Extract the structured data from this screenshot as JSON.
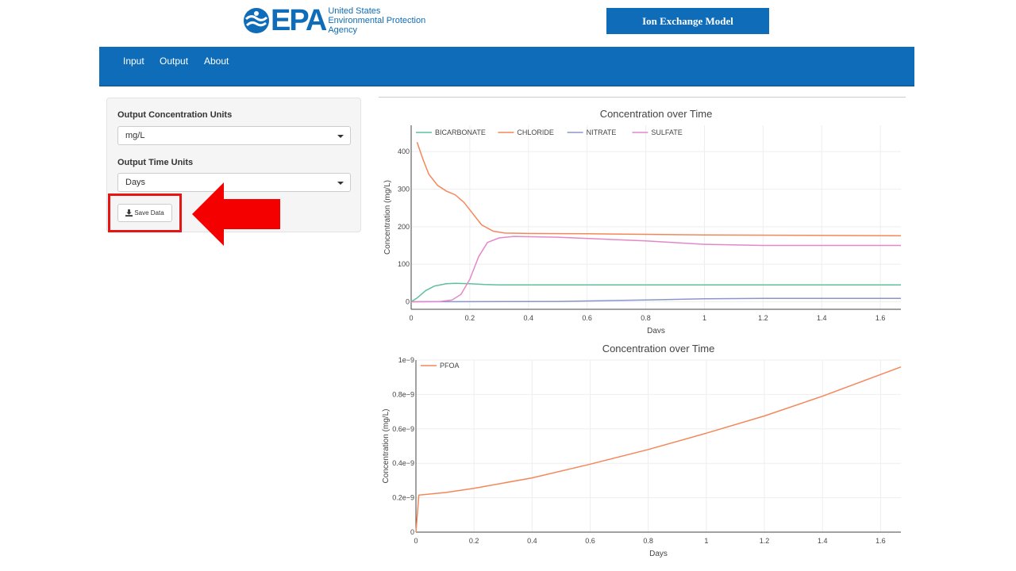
{
  "header": {
    "logo_word": "EPA",
    "logo_line1": "United States",
    "logo_line2": "Environmental Protection",
    "logo_line3": "Agency",
    "model_title": "Ion Exchange Model"
  },
  "nav": {
    "items": [
      "Input",
      "Output",
      "About"
    ]
  },
  "sidebar": {
    "conc_units_label": "Output Concentration Units",
    "conc_units_value": "mg/L",
    "time_units_label": "Output Time Units",
    "time_units_value": "Days",
    "save_label": "Save Data"
  },
  "chart_data": [
    {
      "type": "line",
      "title": "Concentration over Time",
      "xlabel": "Days",
      "ylabel": "Concentration (mg/L)",
      "xlim": [
        0,
        1.67
      ],
      "ylim": [
        -20,
        470
      ],
      "xticks": [
        0,
        0.2,
        0.4,
        0.6,
        0.8,
        1,
        1.2,
        1.4,
        1.6
      ],
      "xtick_labels": [
        "0",
        "0.2",
        "0.4",
        "0.6",
        "0.8",
        "1",
        "1.2",
        "1.4",
        "1.6"
      ],
      "yticks": [
        0,
        100,
        200,
        300,
        400
      ],
      "ytick_labels": [
        "0",
        "100",
        "200",
        "300",
        "400"
      ],
      "grid": true,
      "legend_position": "top-left",
      "series": [
        {
          "name": "BICARBONATE",
          "color": "#5ec19a",
          "x": [
            0,
            0.02,
            0.05,
            0.08,
            0.12,
            0.15,
            0.2,
            0.25,
            0.3,
            0.5,
            1.0,
            1.67
          ],
          "y": [
            0,
            10,
            30,
            42,
            48,
            49,
            48,
            46,
            45,
            45,
            45,
            45
          ]
        },
        {
          "name": "CHLORIDE",
          "color": "#f4875a",
          "x": [
            0.02,
            0.04,
            0.06,
            0.09,
            0.12,
            0.15,
            0.18,
            0.21,
            0.24,
            0.28,
            0.32,
            0.4,
            0.6,
            1.0,
            1.67
          ],
          "y": [
            425,
            380,
            340,
            310,
            295,
            285,
            265,
            235,
            205,
            188,
            183,
            182,
            181,
            178,
            176
          ]
        },
        {
          "name": "NITRATE",
          "color": "#8a96c8",
          "x": [
            0,
            0.5,
            0.8,
            1.0,
            1.2,
            1.67
          ],
          "y": [
            0,
            1,
            5,
            8,
            9,
            9
          ]
        },
        {
          "name": "SULFATE",
          "color": "#e487c9",
          "x": [
            0,
            0.1,
            0.14,
            0.17,
            0.2,
            0.23,
            0.26,
            0.3,
            0.35,
            0.5,
            0.8,
            1.0,
            1.2,
            1.67
          ],
          "y": [
            0,
            1,
            5,
            20,
            60,
            120,
            158,
            170,
            174,
            172,
            162,
            153,
            150,
            150
          ]
        }
      ]
    },
    {
      "type": "line",
      "title": "Concentration over Time",
      "xlabel": "Days",
      "ylabel": "Concentration (mg/L)",
      "xlim": [
        0,
        1.67
      ],
      "ylim": [
        0,
        1e-09
      ],
      "xticks": [
        0,
        0.2,
        0.4,
        0.6,
        0.8,
        1,
        1.2,
        1.4,
        1.6
      ],
      "xtick_labels": [
        "0",
        "0.2",
        "0.4",
        "0.6",
        "0.8",
        "1",
        "1.2",
        "1.4",
        "1.6"
      ],
      "yticks": [
        0,
        2e-10,
        4e-10,
        6e-10,
        8e-10,
        1e-09
      ],
      "ytick_labels": [
        "0",
        "0.2e−9",
        "0.4e−9",
        "0.6e−9",
        "0.8e−9",
        "1e−9"
      ],
      "grid": true,
      "legend_position": "top-left",
      "series": [
        {
          "name": "PFOA",
          "color": "#f4875a",
          "x": [
            0,
            0.01,
            0.1,
            0.2,
            0.4,
            0.6,
            0.8,
            1.0,
            1.2,
            1.4,
            1.67
          ],
          "y": [
            0,
            2.15e-10,
            2.3e-10,
            2.55e-10,
            3.15e-10,
            3.95e-10,
            4.8e-10,
            5.75e-10,
            6.75e-10,
            7.9e-10,
            9.6e-10
          ]
        }
      ]
    }
  ]
}
